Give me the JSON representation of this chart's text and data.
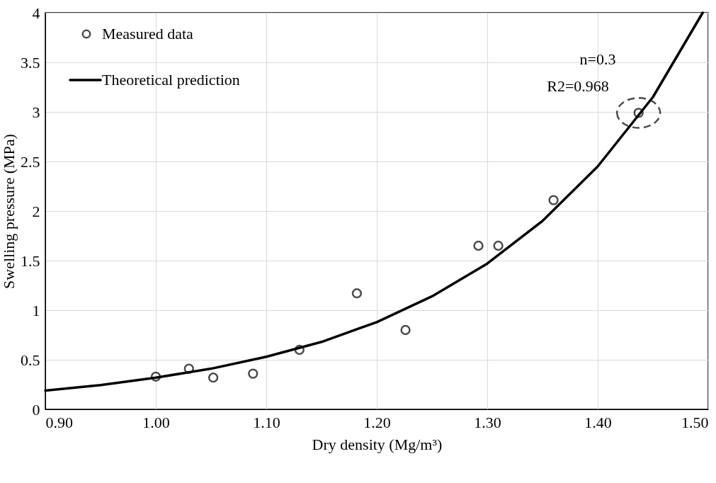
{
  "chart_data": {
    "type": "scatter",
    "xlabel": "Dry density (Mg/m³)",
    "ylabel": "Swelling pressure (MPa)",
    "series": [
      {
        "name": "Measured data",
        "color": "#000000",
        "marker": "circle",
        "x": [
          1.0,
          1.03,
          1.052,
          1.088,
          1.13,
          1.182,
          1.226,
          1.292,
          1.31,
          1.36,
          1.437
        ],
        "values": [
          0.33,
          0.41,
          0.32,
          0.36,
          0.6,
          1.17,
          0.8,
          1.65,
          1.65,
          2.11,
          2.99
        ]
      },
      {
        "name": "Theoretical prediction",
        "type": "line",
        "color": "#000000",
        "line_style": "solid",
        "marker": "none",
        "x": [
          0.9,
          0.95,
          1.0,
          1.05,
          1.1,
          1.15,
          1.2,
          1.25,
          1.3,
          1.35,
          1.4,
          1.45,
          1.495
        ],
        "values": [
          0.19,
          0.245,
          0.32,
          0.41,
          0.53,
          0.68,
          0.88,
          1.14,
          1.47,
          1.9,
          2.45,
          3.15,
          4.0
        ]
      }
    ],
    "xlim": [
      0.9,
      1.5
    ],
    "xticks": [
      {
        "value": 0.9,
        "label": "0.90"
      },
      {
        "value": 1.0,
        "label": "1.00"
      },
      {
        "value": 1.1,
        "label": "1.10"
      },
      {
        "value": 1.2,
        "label": "1.20"
      },
      {
        "value": 1.3,
        "label": "1.30"
      },
      {
        "value": 1.4,
        "label": "1.40"
      },
      {
        "value": 1.5,
        "label": "1.50"
      }
    ],
    "ylim": [
      0,
      4
    ],
    "yticks": [
      0,
      0.5,
      1,
      1.5,
      2,
      2.5,
      3,
      3.5,
      4
    ],
    "grid": true,
    "legend": "top left",
    "annotations": [
      "n=0.3",
      "R2=0.968"
    ]
  }
}
